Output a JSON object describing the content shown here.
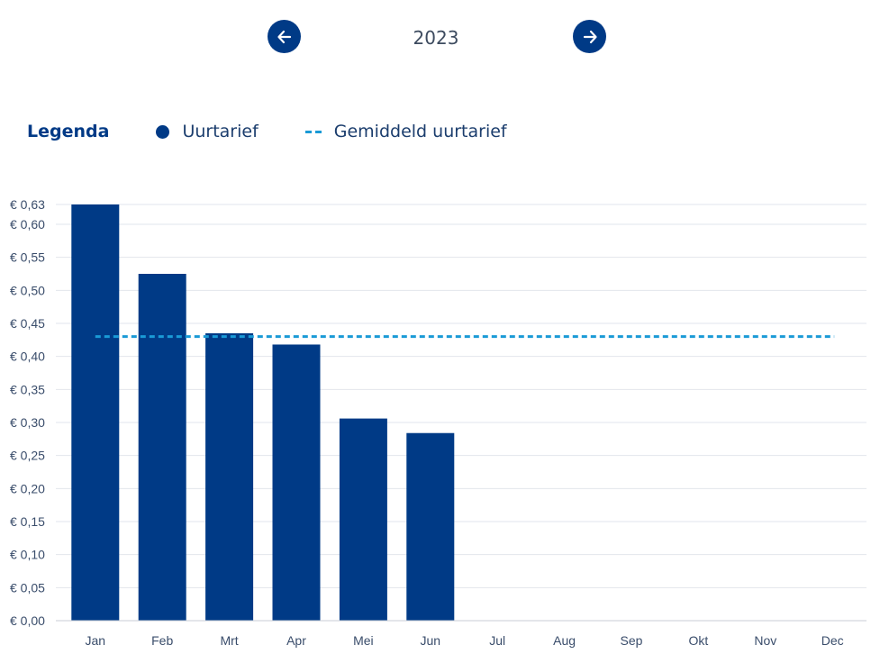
{
  "year_nav": {
    "year": "2023",
    "prev_icon": "arrow-left-icon",
    "next_icon": "arrow-right-icon"
  },
  "legend": {
    "title": "Legenda",
    "items": [
      {
        "label": "Uurtarief",
        "marker": "dot"
      },
      {
        "label": "Gemiddeld uurtarief",
        "marker": "dashed-line"
      }
    ]
  },
  "colors": {
    "bar": "#003a86",
    "average_line": "#1a9ad6",
    "grid": "#e2e6ec",
    "axis_text": "#3a4d6b"
  },
  "chart_data": {
    "type": "bar",
    "title": "",
    "xlabel": "",
    "ylabel": "",
    "categories": [
      "Jan",
      "Feb",
      "Mrt",
      "Apr",
      "Mei",
      "Jun",
      "Jul",
      "Aug",
      "Sep",
      "Okt",
      "Nov",
      "Dec"
    ],
    "series": [
      {
        "name": "Uurtarief",
        "values": [
          0.63,
          0.525,
          0.435,
          0.418,
          0.306,
          0.284,
          null,
          null,
          null,
          null,
          null,
          null
        ]
      }
    ],
    "average": {
      "name": "Gemiddeld uurtarief",
      "value": 0.43
    },
    "ylim": [
      0,
      0.63
    ],
    "yticks": [
      0,
      0.05,
      0.1,
      0.15,
      0.2,
      0.25,
      0.3,
      0.35,
      0.4,
      0.45,
      0.5,
      0.55,
      0.6,
      0.63
    ],
    "ytick_labels": [
      "€ 0,00",
      "€ 0,05",
      "€ 0,10",
      "€ 0,15",
      "€ 0,20",
      "€ 0,25",
      "€ 0,30",
      "€ 0,35",
      "€ 0,40",
      "€ 0,45",
      "€ 0,50",
      "€ 0,55",
      "€ 0,60",
      "€ 0,63"
    ],
    "grid": true,
    "legend_position": "top-left"
  }
}
